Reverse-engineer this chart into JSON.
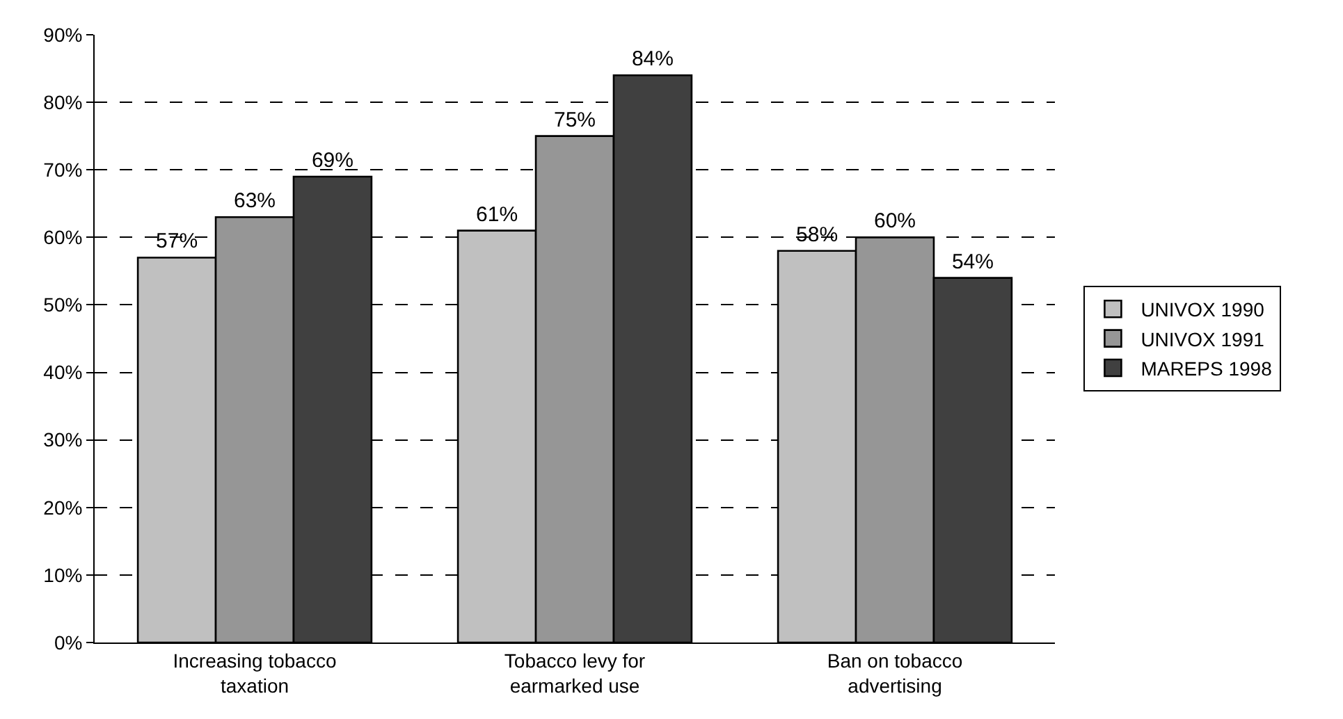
{
  "chart_data": {
    "type": "bar",
    "categories": [
      "Increasing tobacco taxation",
      "Tobacco levy for earmarked use",
      "Ban on tobacco advertising"
    ],
    "series": [
      {
        "name": "UNIVOX 1990",
        "color": "#c0c0c0",
        "values": [
          57,
          61,
          58
        ],
        "value_labels": [
          "57%",
          "61%",
          "58%"
        ]
      },
      {
        "name": "UNIVOX 1991",
        "color": "#969696",
        "values": [
          63,
          75,
          60
        ],
        "value_labels": [
          "63%",
          "75%",
          "60%"
        ]
      },
      {
        "name": "MAREPS 1998",
        "color": "#404040",
        "values": [
          69,
          84,
          54
        ],
        "value_labels": [
          "69%",
          "84%",
          "54%"
        ]
      }
    ],
    "ylim": [
      0,
      90
    ],
    "yticks": [
      {
        "value": 0,
        "label": "0%"
      },
      {
        "value": 10,
        "label": "10%"
      },
      {
        "value": 20,
        "label": "20%"
      },
      {
        "value": 30,
        "label": "30%"
      },
      {
        "value": 40,
        "label": "40%"
      },
      {
        "value": 50,
        "label": "50%"
      },
      {
        "value": 60,
        "label": "60%"
      },
      {
        "value": 70,
        "label": "70%"
      },
      {
        "value": 80,
        "label": "80%"
      },
      {
        "value": 90,
        "label": "90%"
      }
    ],
    "grid": "y",
    "legend": "right"
  }
}
